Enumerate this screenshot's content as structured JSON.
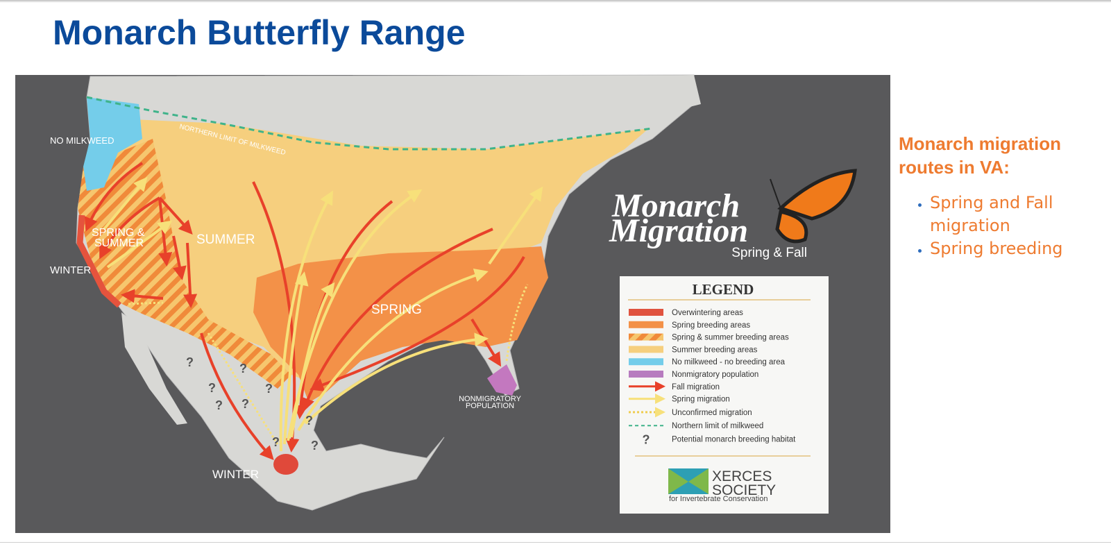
{
  "header": {
    "title": "Monarch Butterfly Range"
  },
  "map": {
    "labels": [
      "NO MILKWEED",
      "NORTHERN LIMIT OF MILKWEED",
      "SPRING &",
      "SUMMER",
      "SUMMER",
      "WINTER",
      "SPRING",
      "WINTER",
      "NONMIGRATORY",
      "POPULATION"
    ],
    "question_marks": [
      "?",
      "?",
      "?",
      "?",
      "?",
      "?",
      "?",
      "?",
      "?"
    ],
    "logo": {
      "line1": "Monarch",
      "line2": "Migration",
      "subtitle": "Spring & Fall"
    },
    "legend": {
      "title": "LEGEND",
      "items": [
        "Overwintering areas",
        "Spring breeding areas",
        "Spring & summer breeding areas",
        "Summer breeding areas",
        "No milkweed - no breeding area",
        "Nonmigratory population",
        "Fall migration",
        "Spring migration",
        "Unconfirmed migration",
        "Northern limit of milkweed",
        "Potential monarch breeding habitat"
      ]
    },
    "credit": {
      "line1": "XERCES",
      "line2": "SOCIETY",
      "tagline": "for Invertebrate Conservation"
    }
  },
  "sidebar": {
    "heading": "Monarch migration routes in VA:",
    "bullets": [
      "Spring and Fall migration",
      "Spring breeding"
    ]
  }
}
